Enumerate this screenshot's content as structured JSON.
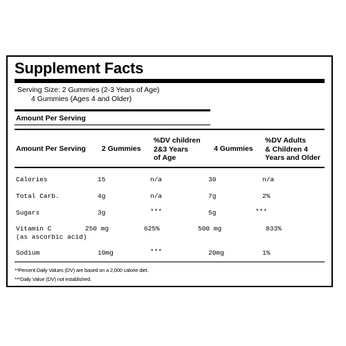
{
  "title": "Supplement Facts",
  "serving_size": {
    "line1": "Serving Size: 2 Gummies (2-3 Years of Age)",
    "line2": "4 Gummies (Ages 4 and Older)"
  },
  "amount_per_serving_label": "Amount Per Serving",
  "table": {
    "headers": {
      "nutrient": "Amount Per Serving",
      "amount_2": "2 Gummies",
      "dv_children_1": "%DV children",
      "dv_children_2": "2&3 Years",
      "dv_children_3": "of Age",
      "amount_4": "4 Gummies",
      "dv_adults_1": "%DV Adults",
      "dv_adults_2": "& Children 4",
      "dv_adults_3": "Years and Older"
    },
    "rows": [
      {
        "name": "Calories",
        "name2": "",
        "amt2": "15",
        "dv2": "n/a",
        "amt4": "30",
        "dv4": "n/a"
      },
      {
        "name": "Total Carb.",
        "name2": "",
        "amt2": "4g",
        "dv2": "n/a",
        "amt4": "7g",
        "dv4": "2%"
      },
      {
        "name": "Sugars",
        "name2": "",
        "amt2": "3g",
        "dv2": "***",
        "amt4": "5g",
        "dv4": "***"
      },
      {
        "name": "Vitamin C",
        "name2": "(as ascorbic acid)",
        "amt2": "250 mg",
        "dv2": "625%",
        "amt4": "500 mg",
        "dv4": "833%"
      },
      {
        "name": "Sodium",
        "name2": "",
        "amt2": "10mg",
        "dv2": "***",
        "amt4": "20mg",
        "dv4": "1%"
      }
    ]
  },
  "footnotes": [
    "**Percent Daily Values (DV) are based on a 2,000 calorie diet.",
    "***Daily Value (DV) not established."
  ]
}
